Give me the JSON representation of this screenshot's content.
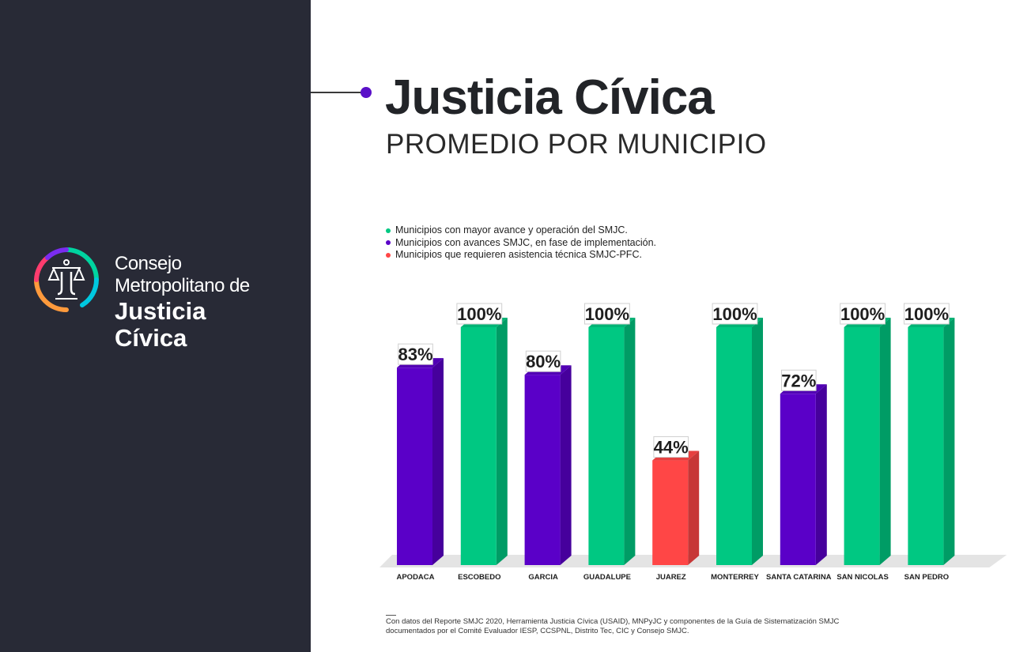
{
  "sidebar": {
    "org_line1": "Consejo",
    "org_line2": "Metropolitano de",
    "org_line3": "Justicia",
    "org_line4": "Cívica",
    "background": "#282a36"
  },
  "header": {
    "title": "Justicia Cívica",
    "subtitle": "PROMEDIO POR MUNICIPIO"
  },
  "legend": [
    {
      "label": "Municipios con mayor avance y operación del SMJC.",
      "color": "#00c882"
    },
    {
      "label": "Municipios con avances SMJC, en fase de implementación.",
      "color": "#5a00c8"
    },
    {
      "label": "Municipios que requieren asistencia técnica SMJC-PFC.",
      "color": "#ff4646"
    }
  ],
  "chart_data": {
    "type": "bar",
    "title": "PROMEDIO POR MUNICIPIO",
    "categories": [
      "APODACA",
      "ESCOBEDO",
      "GARCIA",
      "GUADALUPE",
      "JUAREZ",
      "MONTERREY",
      "SANTA CATARINA",
      "SAN NICOLAS",
      "SAN PEDRO"
    ],
    "values": [
      83,
      100,
      80,
      100,
      44,
      100,
      72,
      100,
      100
    ],
    "value_labels": [
      "83%",
      "100%",
      "80%",
      "100%",
      "44%",
      "100%",
      "72%",
      "100%",
      "100%"
    ],
    "status": [
      "implementacion",
      "avance",
      "implementacion",
      "avance",
      "asistencia",
      "avance",
      "implementacion",
      "avance",
      "avance"
    ],
    "colors": {
      "avance": "#00c882",
      "implementacion": "#5a00c8",
      "asistencia": "#ff4646"
    },
    "ylim": [
      0,
      100
    ],
    "grid": false,
    "legend_position": "top-left"
  },
  "footnote": {
    "line1": "Con datos del Reporte SMJC 2020, Herramienta Justicia Cívica (USAID), MNPyJC y componentes de la Guía de Sistematización SMJC",
    "line2": "documentados por el Comité Evaluador IESP, CCSPNL, Distrito Tec, CIC y Consejo SMJC."
  }
}
